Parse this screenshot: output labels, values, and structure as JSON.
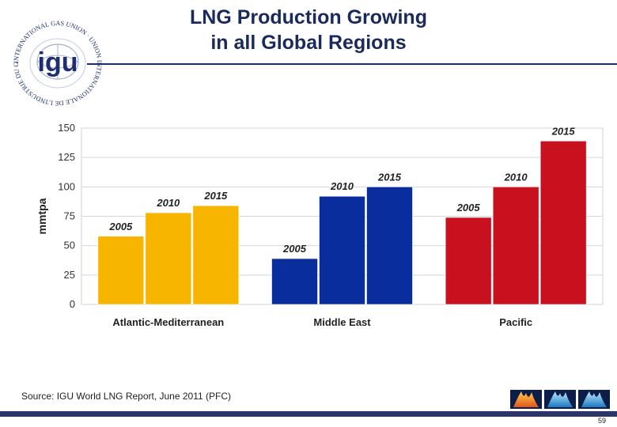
{
  "title_line1": "LNG Production Growing",
  "title_line2": "in all Global Regions",
  "logo": {
    "ring_text": "INTERNATIONAL GAS UNION · UNION INTERNATIONALE DE L'INDUSTRIE DU GAZ",
    "mark": "igu"
  },
  "source": "Source: IGU World LNG Report, June 2011 (PFC)",
  "page_number": "59",
  "chart_data": {
    "type": "bar",
    "title": "",
    "xlabel": "",
    "ylabel": "mmtpa",
    "ylim": [
      0,
      150
    ],
    "yticks": [
      0,
      25,
      50,
      75,
      100,
      125,
      150
    ],
    "grid": true,
    "categories": [
      "Atlantic-Mediterranean",
      "Middle East",
      "Pacific"
    ],
    "groups": [
      {
        "name": "Atlantic-Mediterranean",
        "color": "#f7b500",
        "bars": [
          {
            "label": "2005",
            "value": 58
          },
          {
            "label": "2010",
            "value": 78
          },
          {
            "label": "2015",
            "value": 84
          }
        ]
      },
      {
        "name": "Middle East",
        "color": "#0a2d9e",
        "bars": [
          {
            "label": "2005",
            "value": 39
          },
          {
            "label": "2010",
            "value": 92
          },
          {
            "label": "2015",
            "value": 100
          }
        ]
      },
      {
        "name": "Pacific",
        "color": "#c8101e",
        "bars": [
          {
            "label": "2005",
            "value": 74
          },
          {
            "label": "2010",
            "value": 100
          },
          {
            "label": "2015",
            "value": 139
          }
        ]
      }
    ]
  }
}
